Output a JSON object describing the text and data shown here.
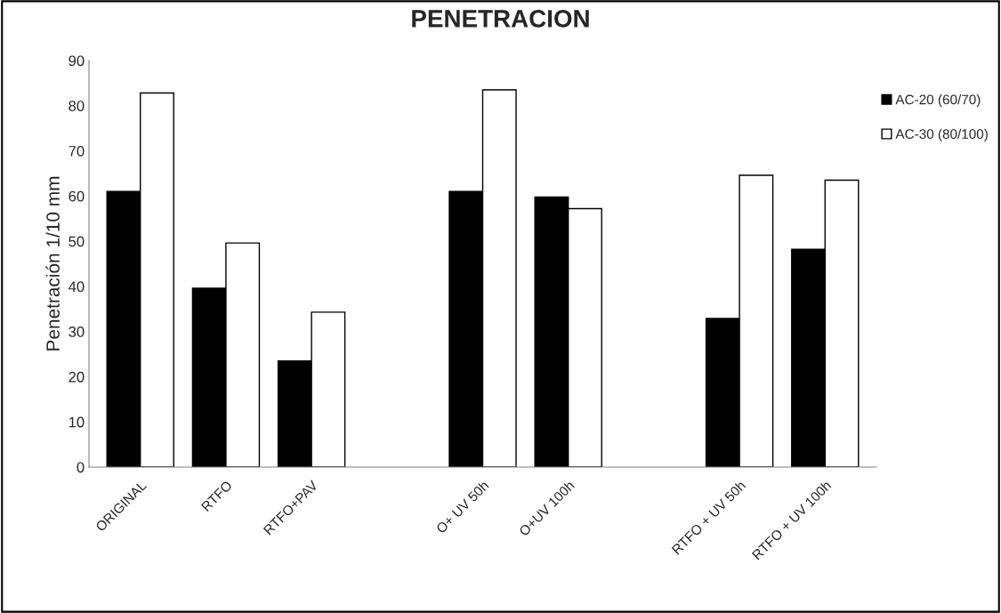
{
  "chart_data": {
    "type": "bar",
    "title": "PENETRACION",
    "ylabel": "Penetración 1/10 mm",
    "categories": [
      "ORIGINAL",
      "RTFO",
      "RTFO+PAV",
      null,
      "O+ UV 50h",
      "O+UV 100h",
      null,
      "RTFO + UV 50h",
      "RTFO + UV 100h"
    ],
    "series": [
      {
        "name": "AC-20 (60/70)",
        "color": "#000000",
        "values": [
          61.0,
          39.6,
          23.5,
          null,
          61.0,
          59.8,
          null,
          32.9,
          48.2
        ]
      },
      {
        "name": "AC-30 (80/100)",
        "color": "#ffffff",
        "values": [
          82.8,
          49.6,
          34.3,
          null,
          83.5,
          57.2,
          null,
          64.6,
          63.5
        ]
      }
    ],
    "ylim": [
      0,
      90
    ],
    "yticks": [
      0,
      10,
      20,
      30,
      40,
      50,
      60,
      70,
      80,
      90
    ],
    "grid": false,
    "legend": "top right"
  }
}
